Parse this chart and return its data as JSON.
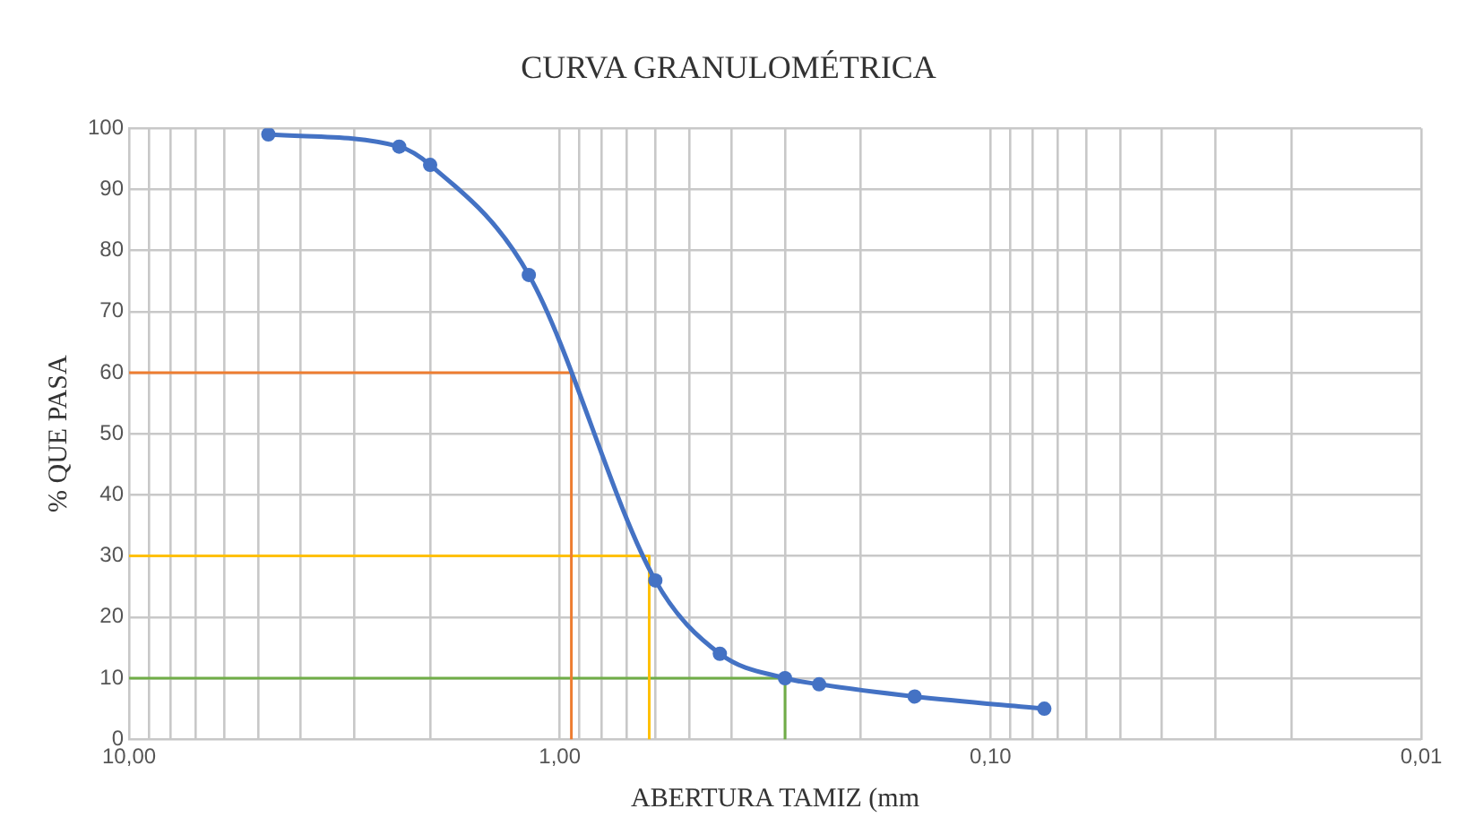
{
  "chart_data": {
    "type": "line",
    "title": "CURVA GRANULOMÉTRICA",
    "xlabel": "ABERTURA TAMIZ (mm",
    "ylabel": "% QUE PASA",
    "log": "x",
    "grid": true,
    "legend": false,
    "marker": "circle",
    "line_style": "solid",
    "xlim": [
      10,
      0.01
    ],
    "ylim": [
      0,
      100
    ],
    "xticks": [
      {
        "value": 10,
        "label": "10,00"
      },
      {
        "value": 9,
        "label": null
      },
      {
        "value": 8,
        "label": null
      },
      {
        "value": 7,
        "label": null
      },
      {
        "value": 6,
        "label": null
      },
      {
        "value": 5,
        "label": null
      },
      {
        "value": 4,
        "label": null
      },
      {
        "value": 3,
        "label": null
      },
      {
        "value": 2,
        "label": null
      },
      {
        "value": 1,
        "label": "1,00"
      },
      {
        "value": 0.9,
        "label": null
      },
      {
        "value": 0.8,
        "label": null
      },
      {
        "value": 0.7,
        "label": null
      },
      {
        "value": 0.6,
        "label": null
      },
      {
        "value": 0.5,
        "label": null
      },
      {
        "value": 0.4,
        "label": null
      },
      {
        "value": 0.3,
        "label": null
      },
      {
        "value": 0.2,
        "label": null
      },
      {
        "value": 0.1,
        "label": "0,10"
      },
      {
        "value": 0.09,
        "label": null
      },
      {
        "value": 0.08,
        "label": null
      },
      {
        "value": 0.07,
        "label": null
      },
      {
        "value": 0.06,
        "label": null
      },
      {
        "value": 0.05,
        "label": null
      },
      {
        "value": 0.04,
        "label": null
      },
      {
        "value": 0.03,
        "label": null
      },
      {
        "value": 0.02,
        "label": null
      },
      {
        "value": 0.01,
        "label": "0,01"
      }
    ],
    "yticks": [
      0,
      10,
      20,
      30,
      40,
      50,
      60,
      70,
      80,
      90,
      100
    ],
    "series": [
      {
        "color": "#4472c4",
        "x": [
          4.75,
          2.36,
          2.0,
          1.18,
          0.6,
          0.425,
          0.3,
          0.25,
          0.15,
          0.075
        ],
        "values": [
          99,
          97,
          94,
          76,
          26,
          14,
          10,
          9,
          7,
          5
        ]
      },
      {
        "type": "line",
        "marker": "none",
        "color": "#ed7d31",
        "x": [
          10,
          0.94,
          0.94
        ],
        "values": [
          60,
          60,
          0
        ]
      },
      {
        "type": "line",
        "marker": "none",
        "color": "#ffc000",
        "x": [
          10,
          0.62,
          0.62
        ],
        "values": [
          30,
          30,
          0
        ]
      },
      {
        "type": "line",
        "marker": "none",
        "color": "#70ad47",
        "x": [
          10,
          0.3,
          0.3
        ],
        "values": [
          10,
          10,
          0
        ]
      }
    ]
  }
}
